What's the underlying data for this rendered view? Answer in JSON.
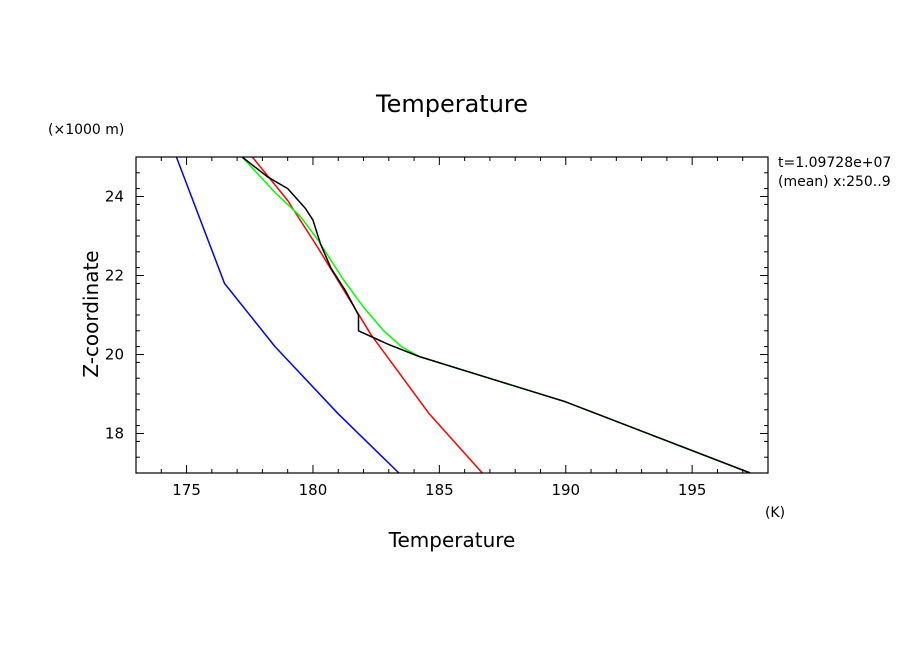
{
  "chart_data": {
    "type": "line",
    "title": "Temperature",
    "xlabel": "Temperature",
    "ylabel": "Z-coordinate",
    "x_unit": "(K)",
    "y_unit": "(×1000 m)",
    "annotation": {
      "time": "t=1.09728e+07",
      "mean": "(mean) x:250..9"
    },
    "xlim": [
      173,
      198
    ],
    "ylim": [
      17,
      25
    ],
    "x_ticks": [
      175,
      180,
      185,
      190,
      195
    ],
    "y_ticks": [
      18,
      20,
      22,
      24
    ],
    "grid": false,
    "series": [
      {
        "color": "#0000ff",
        "points": [
          [
            183.4,
            17.0
          ],
          [
            181.0,
            18.5
          ],
          [
            178.5,
            20.2
          ],
          [
            176.5,
            21.8
          ],
          [
            174.6,
            25.0
          ]
        ]
      },
      {
        "color": "#ff0000",
        "points": [
          [
            186.7,
            17.0
          ],
          [
            184.6,
            18.5
          ],
          [
            182.3,
            20.5
          ],
          [
            180.2,
            22.7
          ],
          [
            179.0,
            23.9
          ],
          [
            177.6,
            25.0
          ]
        ]
      },
      {
        "color": "#00ff00",
        "points": [
          [
            197.3,
            17.0
          ],
          [
            190.0,
            18.8
          ],
          [
            184.2,
            19.95
          ],
          [
            183.5,
            20.2
          ],
          [
            182.8,
            20.6
          ],
          [
            182.0,
            21.2
          ],
          [
            181.2,
            21.9
          ],
          [
            180.6,
            22.5
          ],
          [
            180.2,
            22.9
          ],
          [
            179.5,
            23.5
          ],
          [
            178.5,
            24.1
          ],
          [
            177.2,
            25.0
          ]
        ]
      },
      {
        "color": "#000000",
        "points": [
          [
            197.3,
            17.0
          ],
          [
            190.0,
            18.8
          ],
          [
            184.2,
            19.95
          ],
          [
            183.0,
            20.25
          ],
          [
            181.8,
            20.6
          ],
          [
            181.8,
            21.0
          ],
          [
            181.3,
            21.6
          ],
          [
            180.7,
            22.2
          ],
          [
            180.3,
            22.8
          ],
          [
            180.0,
            23.4
          ],
          [
            179.7,
            23.7
          ],
          [
            179.0,
            24.2
          ],
          [
            178.2,
            24.5
          ],
          [
            177.2,
            25.0
          ]
        ]
      }
    ]
  }
}
